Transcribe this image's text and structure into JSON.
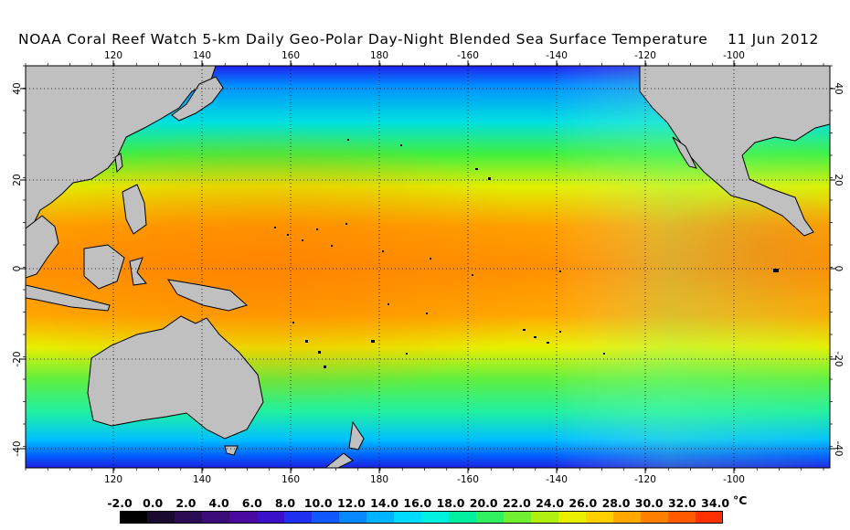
{
  "title": {
    "main": "NOAA Coral Reef Watch 5-km Daily Geo-Polar Day-Night Blended Sea Surface Temperature",
    "date": "11 Jun 2012"
  },
  "map": {
    "lon_ticks_top": [
      "120",
      "140",
      "160",
      "180",
      "-160",
      "-140",
      "-120",
      "-100"
    ],
    "lon_ticks_bottom": [
      "120",
      "140",
      "160",
      "180",
      "-160",
      "-140",
      "-120",
      "-100"
    ],
    "lat_ticks_left": [
      "40",
      "20",
      "0",
      "-20",
      "-40"
    ],
    "lat_ticks_right": [
      "40",
      "20",
      "0",
      "-20",
      "-40"
    ],
    "land_color": "#c0c0c0",
    "grid": "dotted"
  },
  "colorbar": {
    "labels": [
      "-2.0",
      "0.0",
      "2.0",
      "4.0",
      "6.0",
      "8.0",
      "10.0",
      "12.0",
      "14.0",
      "16.0",
      "18.0",
      "20.0",
      "22.0",
      "24.0",
      "26.0",
      "28.0",
      "30.0",
      "32.0",
      "34.0"
    ],
    "unit": "°C",
    "colors": [
      "#000000",
      "#1a0a30",
      "#2c0c55",
      "#3c0c78",
      "#4a0aa0",
      "#3a10c8",
      "#2030f0",
      "#1058ff",
      "#0888ff",
      "#00b4ff",
      "#00dcff",
      "#00f0e0",
      "#00f0a0",
      "#30f060",
      "#70f030",
      "#b0f010",
      "#e8f000",
      "#ffd000",
      "#ffa800",
      "#ff8000",
      "#ff5a00",
      "#ff3000"
    ]
  }
}
